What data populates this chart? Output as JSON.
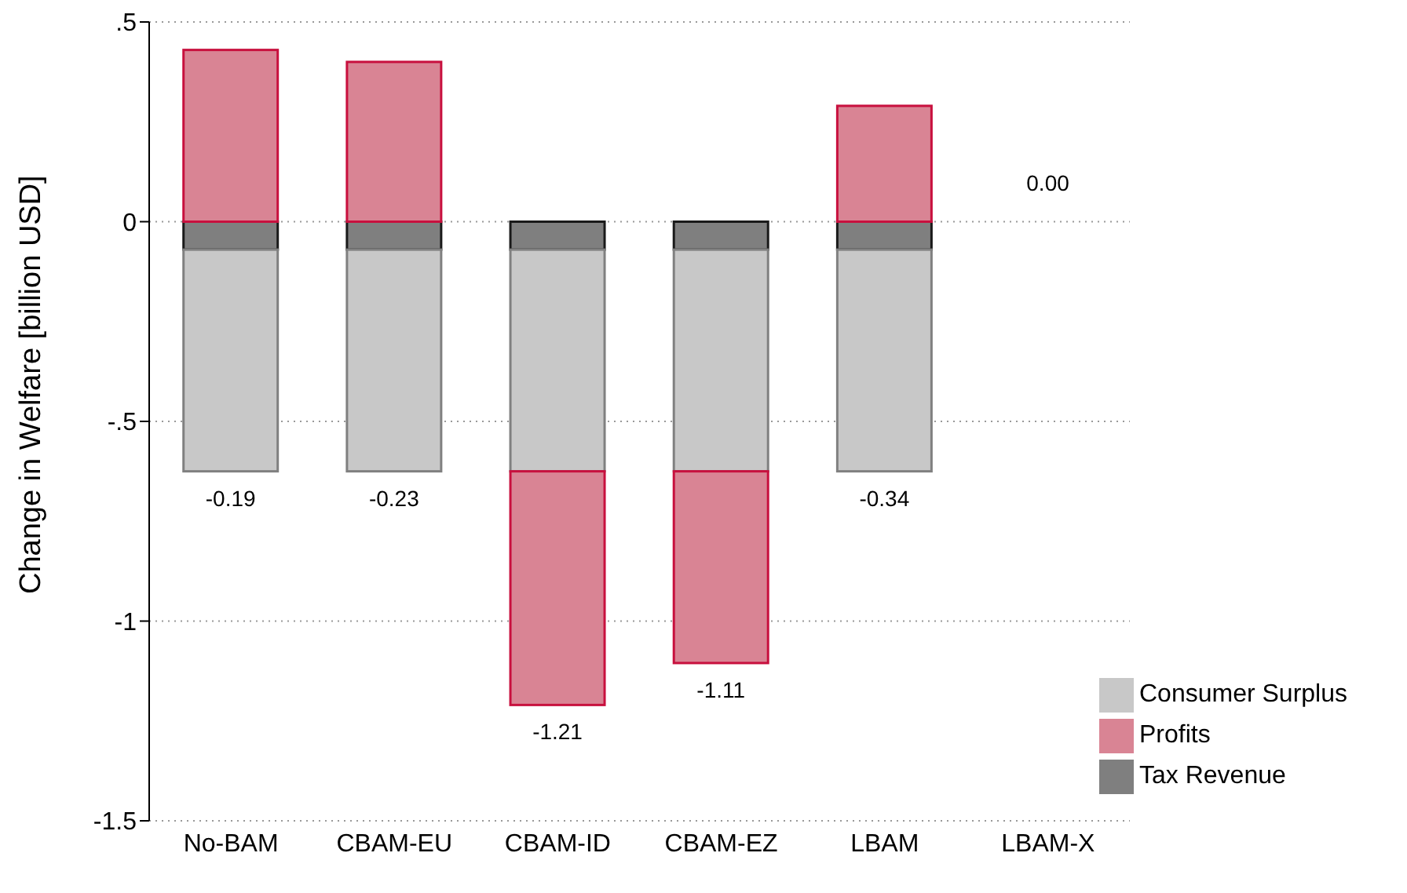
{
  "chart_data": {
    "type": "bar",
    "stacked": true,
    "ylabel": "Change in Welfare [billion USD]",
    "categories": [
      "No-BAM",
      "CBAM-EU",
      "CBAM-ID",
      "CBAM-EZ",
      "LBAM",
      "LBAM-X"
    ],
    "series": [
      {
        "name": "Tax Revenue",
        "color": "#7f7f7f",
        "values": [
          -0.07,
          -0.07,
          -0.07,
          -0.07,
          -0.07,
          0
        ]
      },
      {
        "name": "Consumer Surplus",
        "color": "#c8c8c8",
        "values": [
          -0.555,
          -0.555,
          -0.555,
          -0.555,
          -0.555,
          0
        ]
      },
      {
        "name": "Profits",
        "color": "#d98494",
        "values": [
          0.43,
          0.4,
          -0.585,
          -0.48,
          0.29,
          0
        ]
      }
    ],
    "totals": [
      "-0.19",
      "-0.23",
      "-1.21",
      "-1.11",
      "-0.34",
      "0.00"
    ],
    "ylim": [
      -1.5,
      0.5
    ],
    "yticks": [
      {
        "value": -1.5,
        "label": "-1.5"
      },
      {
        "value": -1,
        "label": "-1"
      },
      {
        "value": -0.5,
        "label": "-.5"
      },
      {
        "value": 0,
        "label": "0"
      },
      {
        "value": 0.5,
        "label": ".5"
      }
    ],
    "grid": "y",
    "legend": "bottom right"
  }
}
